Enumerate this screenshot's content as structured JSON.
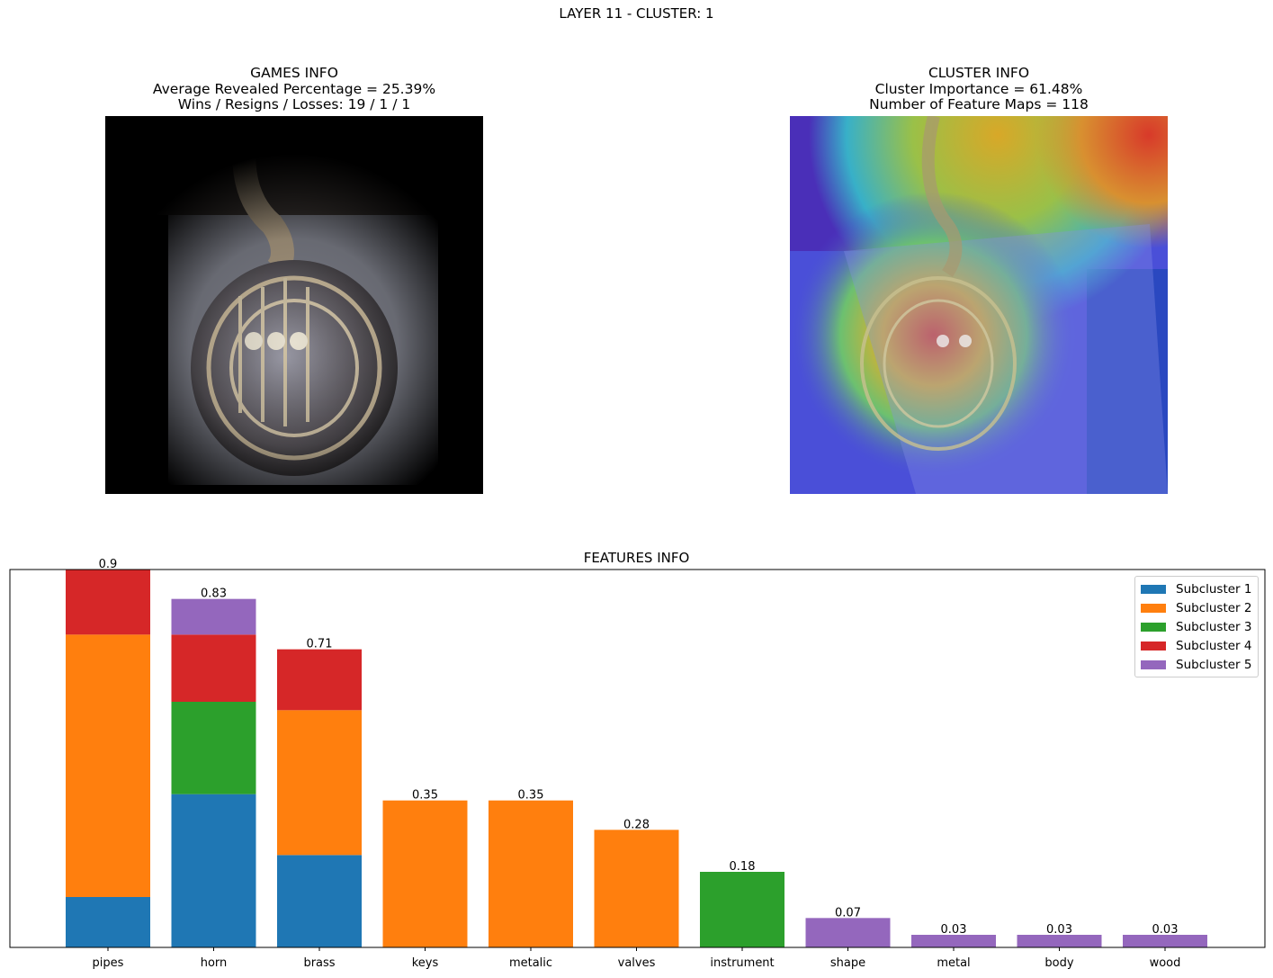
{
  "suptitle": "LAYER 11 - CLUSTER: 1",
  "games_info": {
    "title": "GAMES INFO",
    "line1": "Average Revealed Percentage = 25.39%",
    "line2": "Wins / Resigns / Losses: 19 / 1 / 1"
  },
  "cluster_info": {
    "title": "CLUSTER INFO",
    "line1": "Cluster Importance = 61.48%",
    "line2": "Number of Feature Maps = 118"
  },
  "chart_data": {
    "type": "bar",
    "stacked": true,
    "title": "FEATURES INFO",
    "xlabel": "",
    "ylabel": "",
    "ylim": [
      0,
      0.9
    ],
    "grid": false,
    "legend_position": "top-right",
    "categories": [
      "pipes",
      "horn",
      "brass",
      "keys",
      "metalic",
      "valves",
      "instrument",
      "shape",
      "metal",
      "body",
      "wood"
    ],
    "totals": [
      "0.9",
      "0.83",
      "0.71",
      "0.35",
      "0.35",
      "0.28",
      "0.18",
      "0.07",
      "0.03",
      "0.03",
      "0.03"
    ],
    "series": [
      {
        "name": "Subcluster 1",
        "color": "#1f77b4",
        "values": [
          0.12,
          0.365,
          0.22,
          0,
          0,
          0,
          0,
          0,
          0,
          0,
          0
        ]
      },
      {
        "name": "Subcluster 2",
        "color": "#ff7f0e",
        "values": [
          0.625,
          0,
          0.345,
          0.35,
          0.35,
          0.28,
          0,
          0,
          0,
          0,
          0
        ]
      },
      {
        "name": "Subcluster 3",
        "color": "#2ca02c",
        "values": [
          0,
          0.22,
          0,
          0,
          0,
          0,
          0.18,
          0,
          0,
          0,
          0
        ]
      },
      {
        "name": "Subcluster 4",
        "color": "#d62728",
        "values": [
          0.155,
          0.16,
          0.145,
          0,
          0,
          0,
          0,
          0,
          0,
          0,
          0
        ]
      },
      {
        "name": "Subcluster 5",
        "color": "#9467bd",
        "values": [
          0,
          0.085,
          0,
          0,
          0,
          0,
          0,
          0.07,
          0.03,
          0.03,
          0.03
        ]
      }
    ]
  }
}
